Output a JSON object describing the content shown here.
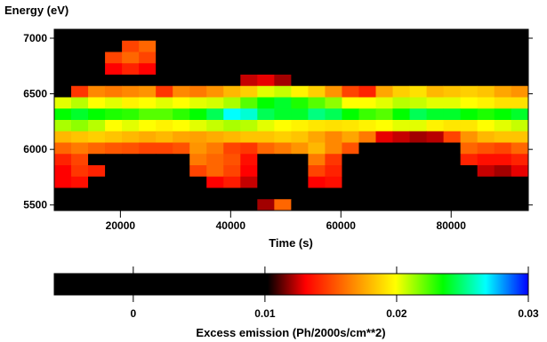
{
  "chart_data": [
    {
      "type": "heatmap",
      "title": "",
      "ylabel": "Energy (eV)",
      "xlabel": "Time (s)",
      "xlim": [
        8000,
        94000
      ],
      "ylim": [
        5450,
        7080
      ],
      "x_ticks": [
        20000,
        40000,
        60000,
        80000
      ],
      "x_tick_labels": [
        "20000",
        "40000",
        "60000",
        "80000"
      ],
      "y_ticks": [
        5500,
        6000,
        6500,
        7000
      ],
      "y_tick_labels": [
        "5500",
        "6000",
        "6500",
        "7000"
      ],
      "grid": false,
      "colormap": "black-red-orange-yellow-green-cyan-blue",
      "x_bins": 28,
      "y_bins": 16,
      "x_start": 8000,
      "x_step": 3070,
      "y_start": 5450,
      "y_step": 101.875,
      "rows_top_to_bottom": [
        [
          0,
          0,
          0,
          0,
          0,
          0,
          0,
          0,
          0,
          0,
          0,
          0,
          0,
          0,
          0,
          0,
          0,
          0,
          0,
          0,
          0,
          0,
          0,
          0,
          0,
          0,
          0,
          0
        ],
        [
          0,
          0,
          0,
          0,
          0.3,
          0.35,
          0,
          0,
          0,
          0,
          0,
          0,
          0,
          0,
          0,
          0,
          0,
          0,
          0,
          0,
          0,
          0,
          0,
          0,
          0,
          0,
          0,
          0
        ],
        [
          0,
          0,
          0,
          0.3,
          0.35,
          0.3,
          0,
          0,
          0,
          0,
          0,
          0,
          0,
          0,
          0,
          0,
          0,
          0,
          0,
          0,
          0,
          0,
          0,
          0,
          0,
          0,
          0,
          0
        ],
        [
          0,
          0,
          0,
          0.2,
          0.25,
          0.2,
          0,
          0,
          0,
          0,
          0,
          0,
          0,
          0,
          0,
          0,
          0,
          0,
          0,
          0,
          0,
          0,
          0,
          0,
          0,
          0,
          0,
          0
        ],
        [
          0,
          0,
          0,
          0,
          0,
          0,
          0,
          0,
          0,
          0,
          0,
          0.15,
          0.18,
          0.12,
          0,
          0,
          0,
          0,
          0,
          0,
          0,
          0,
          0,
          0,
          0,
          0,
          0,
          0
        ],
        [
          0,
          0.28,
          0.4,
          0.38,
          0.4,
          0.42,
          0.28,
          0.4,
          0.38,
          0.42,
          0.48,
          0.52,
          0.62,
          0.64,
          0.58,
          0.52,
          0.42,
          0.3,
          0.25,
          0.45,
          0.52,
          0.55,
          0.48,
          0.5,
          0.52,
          0.5,
          0.45,
          0.42
        ],
        [
          0.62,
          0.65,
          0.6,
          0.62,
          0.58,
          0.6,
          0.62,
          0.6,
          0.62,
          0.63,
          0.66,
          0.72,
          0.78,
          0.8,
          0.76,
          0.72,
          0.68,
          0.6,
          0.6,
          0.62,
          0.65,
          0.64,
          0.62,
          0.62,
          0.6,
          0.58,
          0.55,
          0.55
        ],
        [
          0.78,
          0.8,
          0.78,
          0.76,
          0.75,
          0.72,
          0.72,
          0.75,
          0.78,
          0.82,
          0.9,
          0.88,
          0.82,
          0.8,
          0.8,
          0.84,
          0.82,
          0.78,
          0.74,
          0.72,
          0.78,
          0.82,
          0.8,
          0.8,
          0.78,
          0.76,
          0.78,
          0.8
        ],
        [
          0.66,
          0.68,
          0.65,
          0.6,
          0.62,
          0.6,
          0.58,
          0.6,
          0.62,
          0.64,
          0.66,
          0.65,
          0.62,
          0.6,
          0.58,
          0.56,
          0.55,
          0.56,
          0.58,
          0.6,
          0.62,
          0.62,
          0.58,
          0.56,
          0.56,
          0.6,
          0.62,
          0.64
        ],
        [
          0.48,
          0.5,
          0.52,
          0.5,
          0.48,
          0.46,
          0.48,
          0.45,
          0.44,
          0.46,
          0.48,
          0.5,
          0.5,
          0.52,
          0.5,
          0.45,
          0.4,
          0.45,
          0.38,
          0.18,
          0.15,
          0.12,
          0.14,
          0.3,
          0.42,
          0.48,
          0.5,
          0.5
        ],
        [
          0.35,
          0.38,
          0.35,
          0.33,
          0.32,
          0.3,
          0.3,
          0.32,
          0.42,
          0.38,
          0.3,
          0.28,
          0.35,
          0.38,
          0.42,
          0.48,
          0.4,
          0.32,
          0,
          0,
          0,
          0,
          0,
          0,
          0.35,
          0.32,
          0.3,
          0.35
        ],
        [
          0.25,
          0.3,
          0,
          0,
          0,
          0,
          0,
          0,
          0.38,
          0.35,
          0.32,
          0.22,
          0,
          0,
          0,
          0.38,
          0.28,
          0,
          0,
          0,
          0,
          0,
          0,
          0,
          0.25,
          0.22,
          0.22,
          0.25
        ],
        [
          0.2,
          0.28,
          0.25,
          0,
          0,
          0,
          0,
          0,
          0.3,
          0.35,
          0.3,
          0.2,
          0,
          0,
          0,
          0.3,
          0.25,
          0,
          0,
          0,
          0,
          0,
          0,
          0,
          0,
          0.15,
          0.12,
          0.18
        ],
        [
          0.2,
          0.22,
          0,
          0,
          0,
          0,
          0,
          0,
          0,
          0.2,
          0.24,
          0.15,
          0,
          0,
          0,
          0.2,
          0.22,
          0,
          0,
          0,
          0,
          0,
          0,
          0,
          0,
          0,
          0,
          0
        ],
        [
          0,
          0,
          0,
          0,
          0,
          0,
          0,
          0,
          0,
          0,
          0,
          0,
          0,
          0,
          0,
          0,
          0,
          0,
          0,
          0,
          0,
          0,
          0,
          0,
          0,
          0,
          0,
          0
        ],
        [
          0,
          0,
          0,
          0,
          0,
          0,
          0,
          0,
          0,
          0,
          0,
          0,
          0.12,
          0.35,
          0,
          0,
          0,
          0,
          0,
          0,
          0,
          0,
          0,
          0,
          0,
          0,
          0,
          0
        ]
      ]
    },
    {
      "type": "colorbar",
      "xlabel": "Excess emission (Ph/2000s/cm**2)",
      "xlim": [
        -0.006,
        0.03
      ],
      "ticks": [
        0,
        0.01,
        0.02,
        0.03
      ],
      "tick_labels": [
        "0",
        "0.01",
        "0.02",
        "0.03"
      ]
    }
  ]
}
